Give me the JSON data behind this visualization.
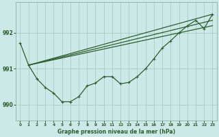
{
  "title": "Graphe pression niveau de la mer (hPa)",
  "background_color": "#cde8e8",
  "grid_color": "#a0c8b8",
  "line_color": "#2a5e2a",
  "xlim": [
    -0.5,
    23.5
  ],
  "ylim": [
    989.55,
    992.85
  ],
  "yticks": [
    990,
    991,
    992
  ],
  "xticks": [
    0,
    1,
    2,
    3,
    4,
    5,
    6,
    7,
    8,
    9,
    10,
    11,
    12,
    13,
    14,
    15,
    16,
    17,
    18,
    19,
    20,
    21,
    22,
    23
  ],
  "jagged": [
    991.72,
    991.1,
    990.72,
    990.48,
    990.32,
    990.08,
    990.08,
    990.22,
    990.52,
    990.6,
    990.78,
    990.78,
    990.58,
    990.62,
    990.78,
    991.0,
    991.28,
    991.58,
    991.78,
    992.0,
    992.2,
    992.35,
    992.12,
    992.52
  ],
  "smooth1": [
    null,
    991.1,
    null,
    null,
    null,
    null,
    null,
    null,
    null,
    null,
    null,
    null,
    null,
    null,
    null,
    null,
    null,
    null,
    null,
    null,
    null,
    null,
    null,
    992.52
  ],
  "smooth2": [
    null,
    991.1,
    null,
    null,
    null,
    null,
    null,
    null,
    null,
    null,
    null,
    null,
    null,
    null,
    null,
    null,
    null,
    null,
    null,
    null,
    null,
    null,
    null,
    992.35
  ],
  "smooth3": [
    null,
    991.1,
    null,
    null,
    null,
    null,
    null,
    null,
    null,
    null,
    null,
    null,
    null,
    null,
    null,
    null,
    null,
    null,
    null,
    null,
    null,
    null,
    null,
    992.2
  ]
}
